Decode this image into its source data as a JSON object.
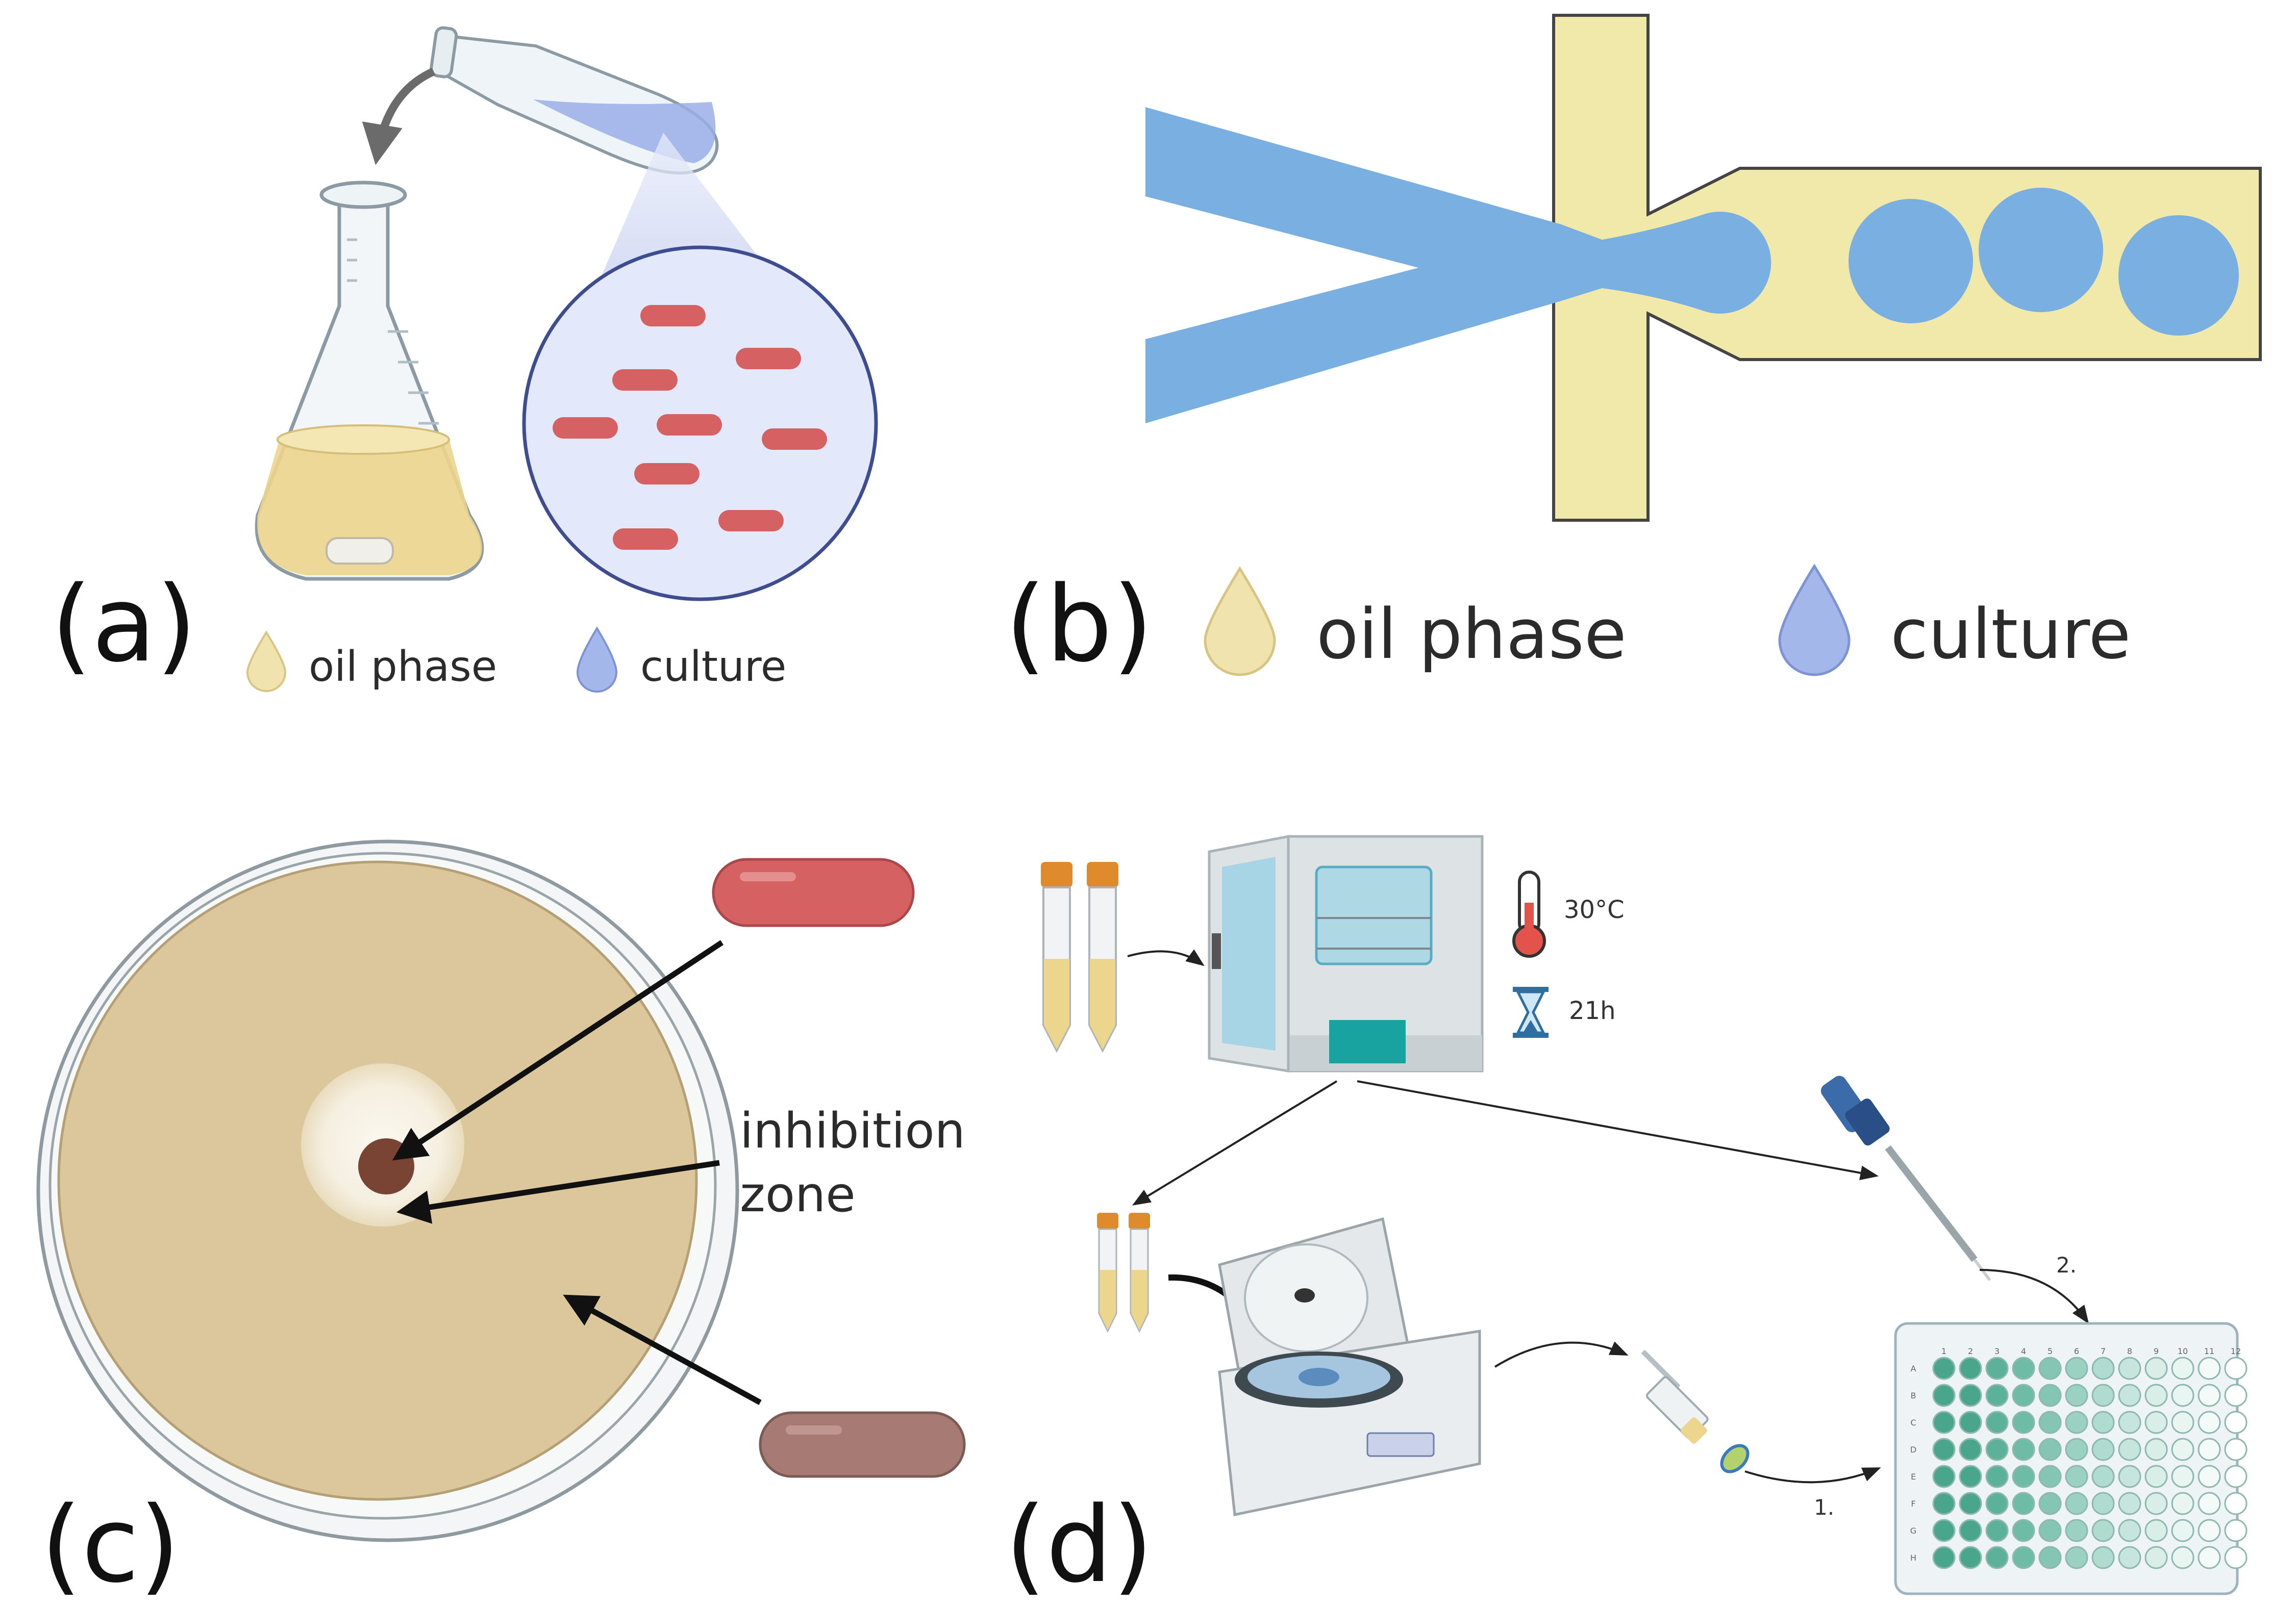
{
  "colors": {
    "oil": "#f1e9aa",
    "culture": "#7aafe1",
    "bacteria_red": "#d56163",
    "bacteria_brown": "#a77b73",
    "agar": "#dcc69c",
    "well_teal": "#4aa58d"
  },
  "panel_a": {
    "label": "(a)",
    "legend": {
      "oil": "oil phase",
      "culture": "culture"
    }
  },
  "panel_b": {
    "label": "(b)",
    "legend": {
      "oil": "oil phase",
      "culture": "culture"
    }
  },
  "panel_c": {
    "label": "(c)",
    "annotation_line1": "inhibition",
    "annotation_line2": "zone"
  },
  "panel_d": {
    "label": "(d)",
    "temperature": "30°C",
    "duration": "21h",
    "step1": "1.",
    "step2": "2.",
    "plate_columns": [
      "1",
      "2",
      "3",
      "4",
      "5",
      "6",
      "7",
      "8",
      "9",
      "10",
      "11",
      "12"
    ],
    "plate_rows": [
      "A",
      "B",
      "C",
      "D",
      "E",
      "F",
      "G",
      "H"
    ]
  }
}
